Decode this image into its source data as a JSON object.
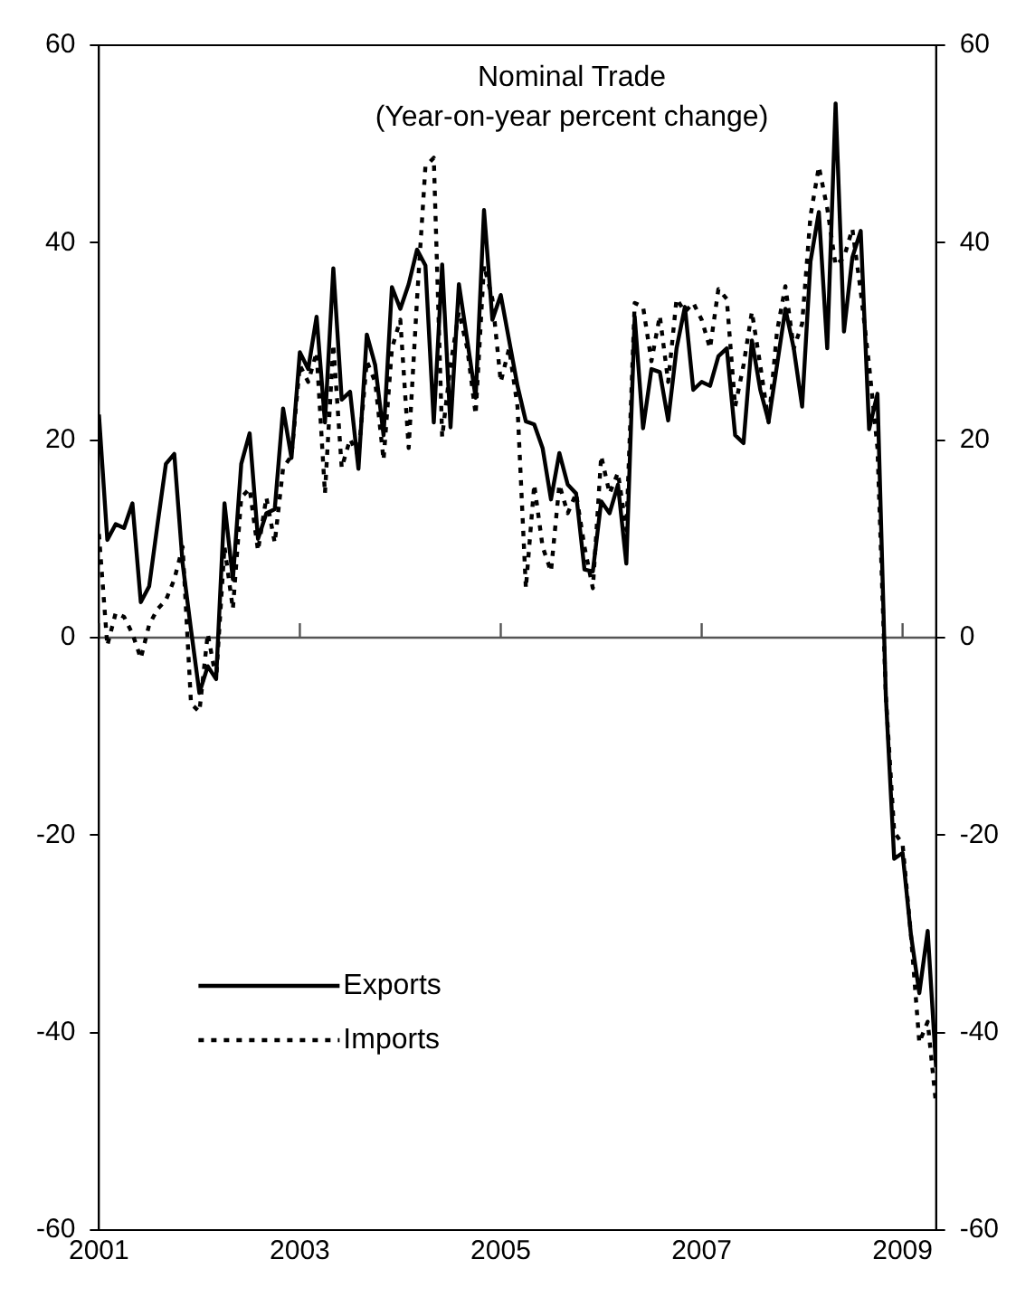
{
  "chart_data": {
    "type": "line",
    "title": "Nominal Trade",
    "subtitle": "(Year-on-year percent change)",
    "x": [
      "2001-01",
      "2001-02",
      "2001-03",
      "2001-04",
      "2001-05",
      "2001-06",
      "2001-07",
      "2001-08",
      "2001-09",
      "2001-10",
      "2001-11",
      "2001-12",
      "2002-01",
      "2002-02",
      "2002-03",
      "2002-04",
      "2002-05",
      "2002-06",
      "2002-07",
      "2002-08",
      "2002-09",
      "2002-10",
      "2002-11",
      "2002-12",
      "2003-01",
      "2003-02",
      "2003-03",
      "2003-04",
      "2003-05",
      "2003-06",
      "2003-07",
      "2003-08",
      "2003-09",
      "2003-10",
      "2003-11",
      "2003-12",
      "2004-01",
      "2004-02",
      "2004-03",
      "2004-04",
      "2004-05",
      "2004-06",
      "2004-07",
      "2004-08",
      "2004-09",
      "2004-10",
      "2004-11",
      "2004-12",
      "2005-01",
      "2005-02",
      "2005-03",
      "2005-04",
      "2005-05",
      "2005-06",
      "2005-07",
      "2005-08",
      "2005-09",
      "2005-10",
      "2005-11",
      "2005-12",
      "2006-01",
      "2006-02",
      "2006-03",
      "2006-04",
      "2006-05",
      "2006-06",
      "2006-07",
      "2006-08",
      "2006-09",
      "2006-10",
      "2006-11",
      "2006-12",
      "2007-01",
      "2007-02",
      "2007-03",
      "2007-04",
      "2007-05",
      "2007-06",
      "2007-07",
      "2007-08",
      "2007-09",
      "2007-10",
      "2007-11",
      "2007-12",
      "2008-01",
      "2008-02",
      "2008-03",
      "2008-04",
      "2008-05",
      "2008-06",
      "2008-07",
      "2008-08",
      "2008-09",
      "2008-10",
      "2008-11",
      "2008-12",
      "2009-01",
      "2009-02",
      "2009-03",
      "2009-04",
      "2009-05"
    ],
    "series": [
      {
        "name": "Exports",
        "color": "#000000",
        "line_style": "solid",
        "values": [
          22.6,
          9.9,
          11.5,
          11.1,
          13.6,
          3.6,
          5.2,
          11.5,
          17.6,
          18.6,
          7.5,
          0.8,
          -5.6,
          -2.9,
          -4.2,
          13.6,
          5.9,
          17.6,
          20.7,
          10,
          12.6,
          13,
          23.2,
          18.2,
          28.9,
          27.2,
          32.5,
          21.8,
          37.4,
          24.1,
          24.9,
          17.1,
          30.7,
          27.6,
          20.5,
          35.5,
          33.3,
          35.8,
          39.3,
          37.7,
          21.8,
          37.8,
          21.3,
          35.8,
          30.1,
          24.3,
          43.3,
          32.2,
          34.7,
          30.1,
          25.5,
          21.9,
          21.6,
          19.2,
          14,
          18.7,
          15.5,
          14.6,
          6.9,
          6.7,
          13.8,
          12.6,
          15.5,
          7.5,
          32.5,
          21.2,
          27.2,
          26.9,
          22,
          29.3,
          33.5,
          25.1,
          25.9,
          25.5,
          28.5,
          29.3,
          20.5,
          19.7,
          30.1,
          25.1,
          21.9,
          27.6,
          33.3,
          29.3,
          23.4,
          38.1,
          43.1,
          29.3,
          54.1,
          31,
          38.5,
          41.2,
          21.1,
          24.7,
          -5.9,
          -22.4,
          -21.8,
          -30.1,
          -36,
          -29.7,
          -43.5
        ]
      },
      {
        "name": "Imports",
        "color": "#000000",
        "line_style": "dotted",
        "values": [
          10.5,
          -0.8,
          2.5,
          2.1,
          0.4,
          -2.1,
          1.3,
          2.9,
          3.8,
          5.9,
          9.2,
          -6.7,
          -7.5,
          0.4,
          -4.2,
          9.2,
          2.9,
          14.2,
          15.1,
          8.8,
          14.2,
          9.6,
          17.2,
          18.4,
          27.6,
          25.9,
          28.9,
          14.6,
          29.7,
          17.2,
          20.1,
          18.4,
          28,
          25.9,
          18,
          29.3,
          32.2,
          19.2,
          34.3,
          47.7,
          48.6,
          20.3,
          27.6,
          33,
          29.3,
          22.6,
          37.7,
          34.3,
          25.9,
          29.3,
          23.4,
          5,
          15.5,
          9.2,
          6.7,
          15.5,
          12.6,
          14.6,
          9.2,
          5,
          18.4,
          14.6,
          16.7,
          10.9,
          33.9,
          33.5,
          28,
          32.6,
          25.9,
          34.3,
          33,
          33.9,
          32.2,
          29.3,
          35.3,
          34.3,
          23.4,
          27.6,
          33,
          27.6,
          21.8,
          31,
          35.6,
          29.3,
          31.8,
          42.7,
          47.7,
          43.5,
          37.7,
          38.5,
          41.4,
          35.1,
          27.6,
          19.2,
          -5.9,
          -19.7,
          -20.9,
          -30.1,
          -41,
          -38.9,
          -47.3
        ]
      }
    ],
    "xlim": [
      "2001-01",
      "2009-05"
    ],
    "xticks": [
      {
        "value": "2001-01",
        "label": "2001"
      },
      {
        "value": "2003-01",
        "label": "2003"
      },
      {
        "value": "2005-01",
        "label": "2005"
      },
      {
        "value": "2007-01",
        "label": "2007"
      },
      {
        "value": "2009-01",
        "label": "2009"
      }
    ],
    "ylim": [
      -60,
      60
    ],
    "yticks": [
      -60,
      -40,
      -20,
      0,
      20,
      40,
      60
    ],
    "y2lim": [
      -60,
      60
    ],
    "y2ticks": [
      -60,
      -40,
      -20,
      0,
      20,
      40,
      60
    ],
    "ref_lines": [
      {
        "axis": "y",
        "value": 0,
        "color": "#555555"
      }
    ],
    "grid": false,
    "legend": "bottom left",
    "marker": "none"
  }
}
